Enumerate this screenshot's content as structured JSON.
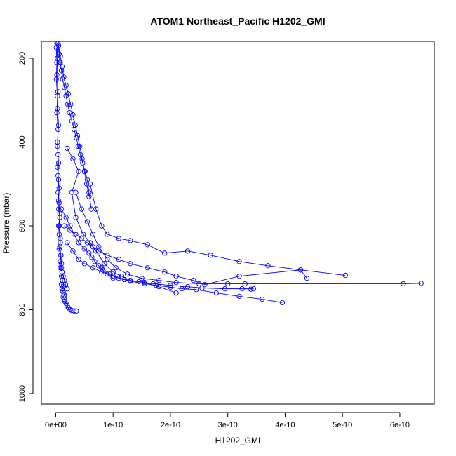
{
  "chart_data": {
    "type": "line",
    "title": "ATOM1 Northeast_Pacific H1202_GMI",
    "xlabel": "H1202_GMI",
    "ylabel": "Pressure (mbar)",
    "xlim": [
      -2.5e-11,
      6.6e-10
    ],
    "ylim": [
      1025,
      160
    ],
    "y_reversed": true,
    "grid": false,
    "legend": "none",
    "marker": "open-circle",
    "color": "#0000ff",
    "x_ticks": [
      {
        "value": 0,
        "label": "0e+00"
      },
      {
        "value": 1e-10,
        "label": "1e-10"
      },
      {
        "value": 2e-10,
        "label": "2e-10"
      },
      {
        "value": 3e-10,
        "label": "3e-10"
      },
      {
        "value": 4e-10,
        "label": "4e-10"
      },
      {
        "value": 5e-10,
        "label": "5e-10"
      },
      {
        "value": 6e-10,
        "label": "6e-10"
      }
    ],
    "y_ticks": [
      {
        "value": 200,
        "label": "200"
      },
      {
        "value": 400,
        "label": "400"
      },
      {
        "value": 600,
        "label": "600"
      },
      {
        "value": 800,
        "label": "800"
      },
      {
        "value": 1000,
        "label": "1000"
      }
    ],
    "series": [
      {
        "x": [
          2e-12,
          3e-12,
          2e-12,
          4e-12,
          3e-12,
          5e-12,
          3e-12,
          4e-12,
          3e-12,
          5e-12,
          4e-12,
          6e-12,
          5e-12,
          7e-12,
          5e-12,
          6e-12,
          8e-12,
          6e-12,
          9e-12,
          1e-11,
          8e-12,
          1.1e-11,
          1e-11,
          1.2e-11,
          1e-11,
          1.3e-11,
          1.1e-11,
          1.2e-11,
          1.4e-11,
          1.5e-11,
          1.3e-11,
          1.5e-11,
          1.6e-11,
          1.8e-11,
          2e-11,
          2.2e-11,
          2.5e-11,
          2.8e-11,
          3.2e-11,
          3.6e-11
        ],
        "y": [
          165,
          200,
          240,
          280,
          320,
          360,
          400,
          430,
          460,
          490,
          520,
          545,
          560,
          580,
          600,
          620,
          640,
          655,
          670,
          690,
          700,
          710,
          720,
          730,
          740,
          745,
          750,
          755,
          760,
          765,
          770,
          775,
          780,
          785,
          790,
          795,
          800,
          802,
          803,
          803
        ]
      },
      {
        "x": [
          1e-12,
          2e-12,
          1e-12,
          3e-12,
          2e-12,
          4e-12,
          3e-12,
          5e-12,
          4e-12,
          6e-12,
          5e-12,
          7e-12,
          6e-12,
          8e-12,
          7e-12,
          9e-12,
          8e-12,
          1e-11,
          1.1e-11,
          1.3e-11,
          1.5e-11,
          1.7e-11,
          2e-11
        ],
        "y": [
          175,
          210,
          250,
          290,
          330,
          370,
          410,
          450,
          480,
          510,
          540,
          570,
          600,
          630,
          650,
          670,
          685,
          700,
          710,
          720,
          730,
          740,
          750
        ]
      },
      {
        "x": [
          4e-12,
          6e-12,
          8e-12,
          1e-11,
          1.2e-11,
          1.5e-11,
          1.8e-11,
          2.1e-11,
          2.4e-11,
          2.8e-11,
          3.2e-11,
          3.6e-11,
          3.9e-11,
          4.3e-11,
          4.7e-11,
          5.1e-11,
          5.5e-11,
          5.8e-11,
          6.2e-11
        ],
        "y": [
          165,
          190,
          210,
          230,
          250,
          270,
          290,
          310,
          330,
          350,
          370,
          390,
          410,
          430,
          450,
          470,
          490,
          520,
          560
        ]
      },
      {
        "x": [
          5e-12,
          8e-12,
          1.1e-11,
          1.4e-11,
          1.8e-11,
          2.2e-11,
          2.6e-11,
          3e-11,
          3.4e-11,
          3.8e-11,
          4.2e-11,
          4.6e-11,
          5e-11,
          5.4e-11,
          5.8e-11
        ],
        "y": [
          170,
          195,
          220,
          245,
          265,
          285,
          310,
          335,
          360,
          385,
          410,
          440,
          470,
          500,
          530
        ]
      },
      {
        "x": [
          1.5e-11,
          2.5e-11,
          3.5e-11,
          4.5e-11,
          5.5e-11,
          6.5e-11,
          7.5e-11,
          9e-11,
          1.1e-10,
          1.3e-10,
          1.6e-10,
          1.9e-10,
          2.1e-10,
          2.4e-10,
          2.6e-10,
          3.2e-10,
          4.27e-10,
          5.05e-10
        ],
        "y": [
          600,
          610,
          620,
          630,
          640,
          650,
          660,
          670,
          680,
          690,
          700,
          710,
          720,
          730,
          740,
          720,
          705,
          718
        ]
      },
      {
        "x": [
          6e-11,
          7e-11,
          8e-11,
          9e-11,
          1.1e-10,
          1.3e-10,
          1.6e-10,
          1.9e-10,
          2.3e-10,
          2.7e-10,
          3.2e-10,
          3.7e-10,
          4.27e-10,
          4.38e-10
        ],
        "y": [
          500,
          560,
          600,
          620,
          630,
          635,
          645,
          665,
          660,
          670,
          685,
          695,
          705,
          725
        ]
      },
      {
        "x": [
          3.5e-11,
          4.5e-11,
          5.5e-11,
          6.5e-11,
          7.5e-11,
          9e-11,
          1.05e-10,
          1.25e-10,
          1.5e-10,
          1.8e-10,
          2.1e-10,
          2.5e-10,
          3e-10,
          3.3e-10,
          6.06e-10,
          6.37e-10
        ],
        "y": [
          520,
          560,
          590,
          620,
          650,
          680,
          700,
          715,
          725,
          730,
          735,
          738,
          738,
          738,
          738,
          737
        ]
      },
      {
        "x": [
          2e-11,
          3e-11,
          4e-11,
          5e-11,
          6.5e-11,
          8e-11,
          1e-10,
          1.2e-10,
          1.45e-10,
          1.7e-10,
          2e-10,
          2.3e-10,
          2.55e-10,
          2.95e-10,
          3.25e-10,
          3.45e-10,
          3.4e-10
        ],
        "y": [
          640,
          660,
          680,
          690,
          700,
          710,
          720,
          728,
          733,
          738,
          742,
          745,
          748,
          750,
          750,
          750,
          751
        ]
      },
      {
        "x": [
          8e-11,
          9.5e-11,
          1.1e-10,
          1.3e-10,
          1.55e-10,
          1.75e-10,
          2e-10,
          2.2e-10,
          2.45e-10,
          2.8e-10,
          3.2e-10,
          3.6e-10,
          3.95e-10
        ],
        "y": [
          700,
          715,
          725,
          732,
          738,
          742,
          746,
          750,
          752,
          760,
          768,
          775,
          783
        ]
      },
      {
        "x": [
          2e-11,
          3e-11,
          4e-11,
          2.8e-11,
          3.5e-11,
          4.8e-11,
          6e-11,
          7e-11,
          8.5e-11,
          1e-10,
          1.15e-10,
          1.3e-10,
          1.55e-10,
          1.8e-10,
          2.1e-10
        ],
        "y": [
          415,
          440,
          470,
          520,
          580,
          620,
          640,
          660,
          690,
          710,
          720,
          730,
          735,
          745,
          760
        ]
      },
      {
        "x": [
          1e-11,
          1.8e-11,
          2.5e-11,
          3.2e-11,
          4e-11,
          5e-11,
          5.8e-11,
          6.3e-11,
          6.8e-11,
          7.5e-11,
          8.2e-11,
          9e-11,
          1e-10
        ],
        "y": [
          560,
          580,
          600,
          620,
          640,
          655,
          665,
          675,
          685,
          695,
          705,
          715,
          725
        ]
      }
    ]
  }
}
